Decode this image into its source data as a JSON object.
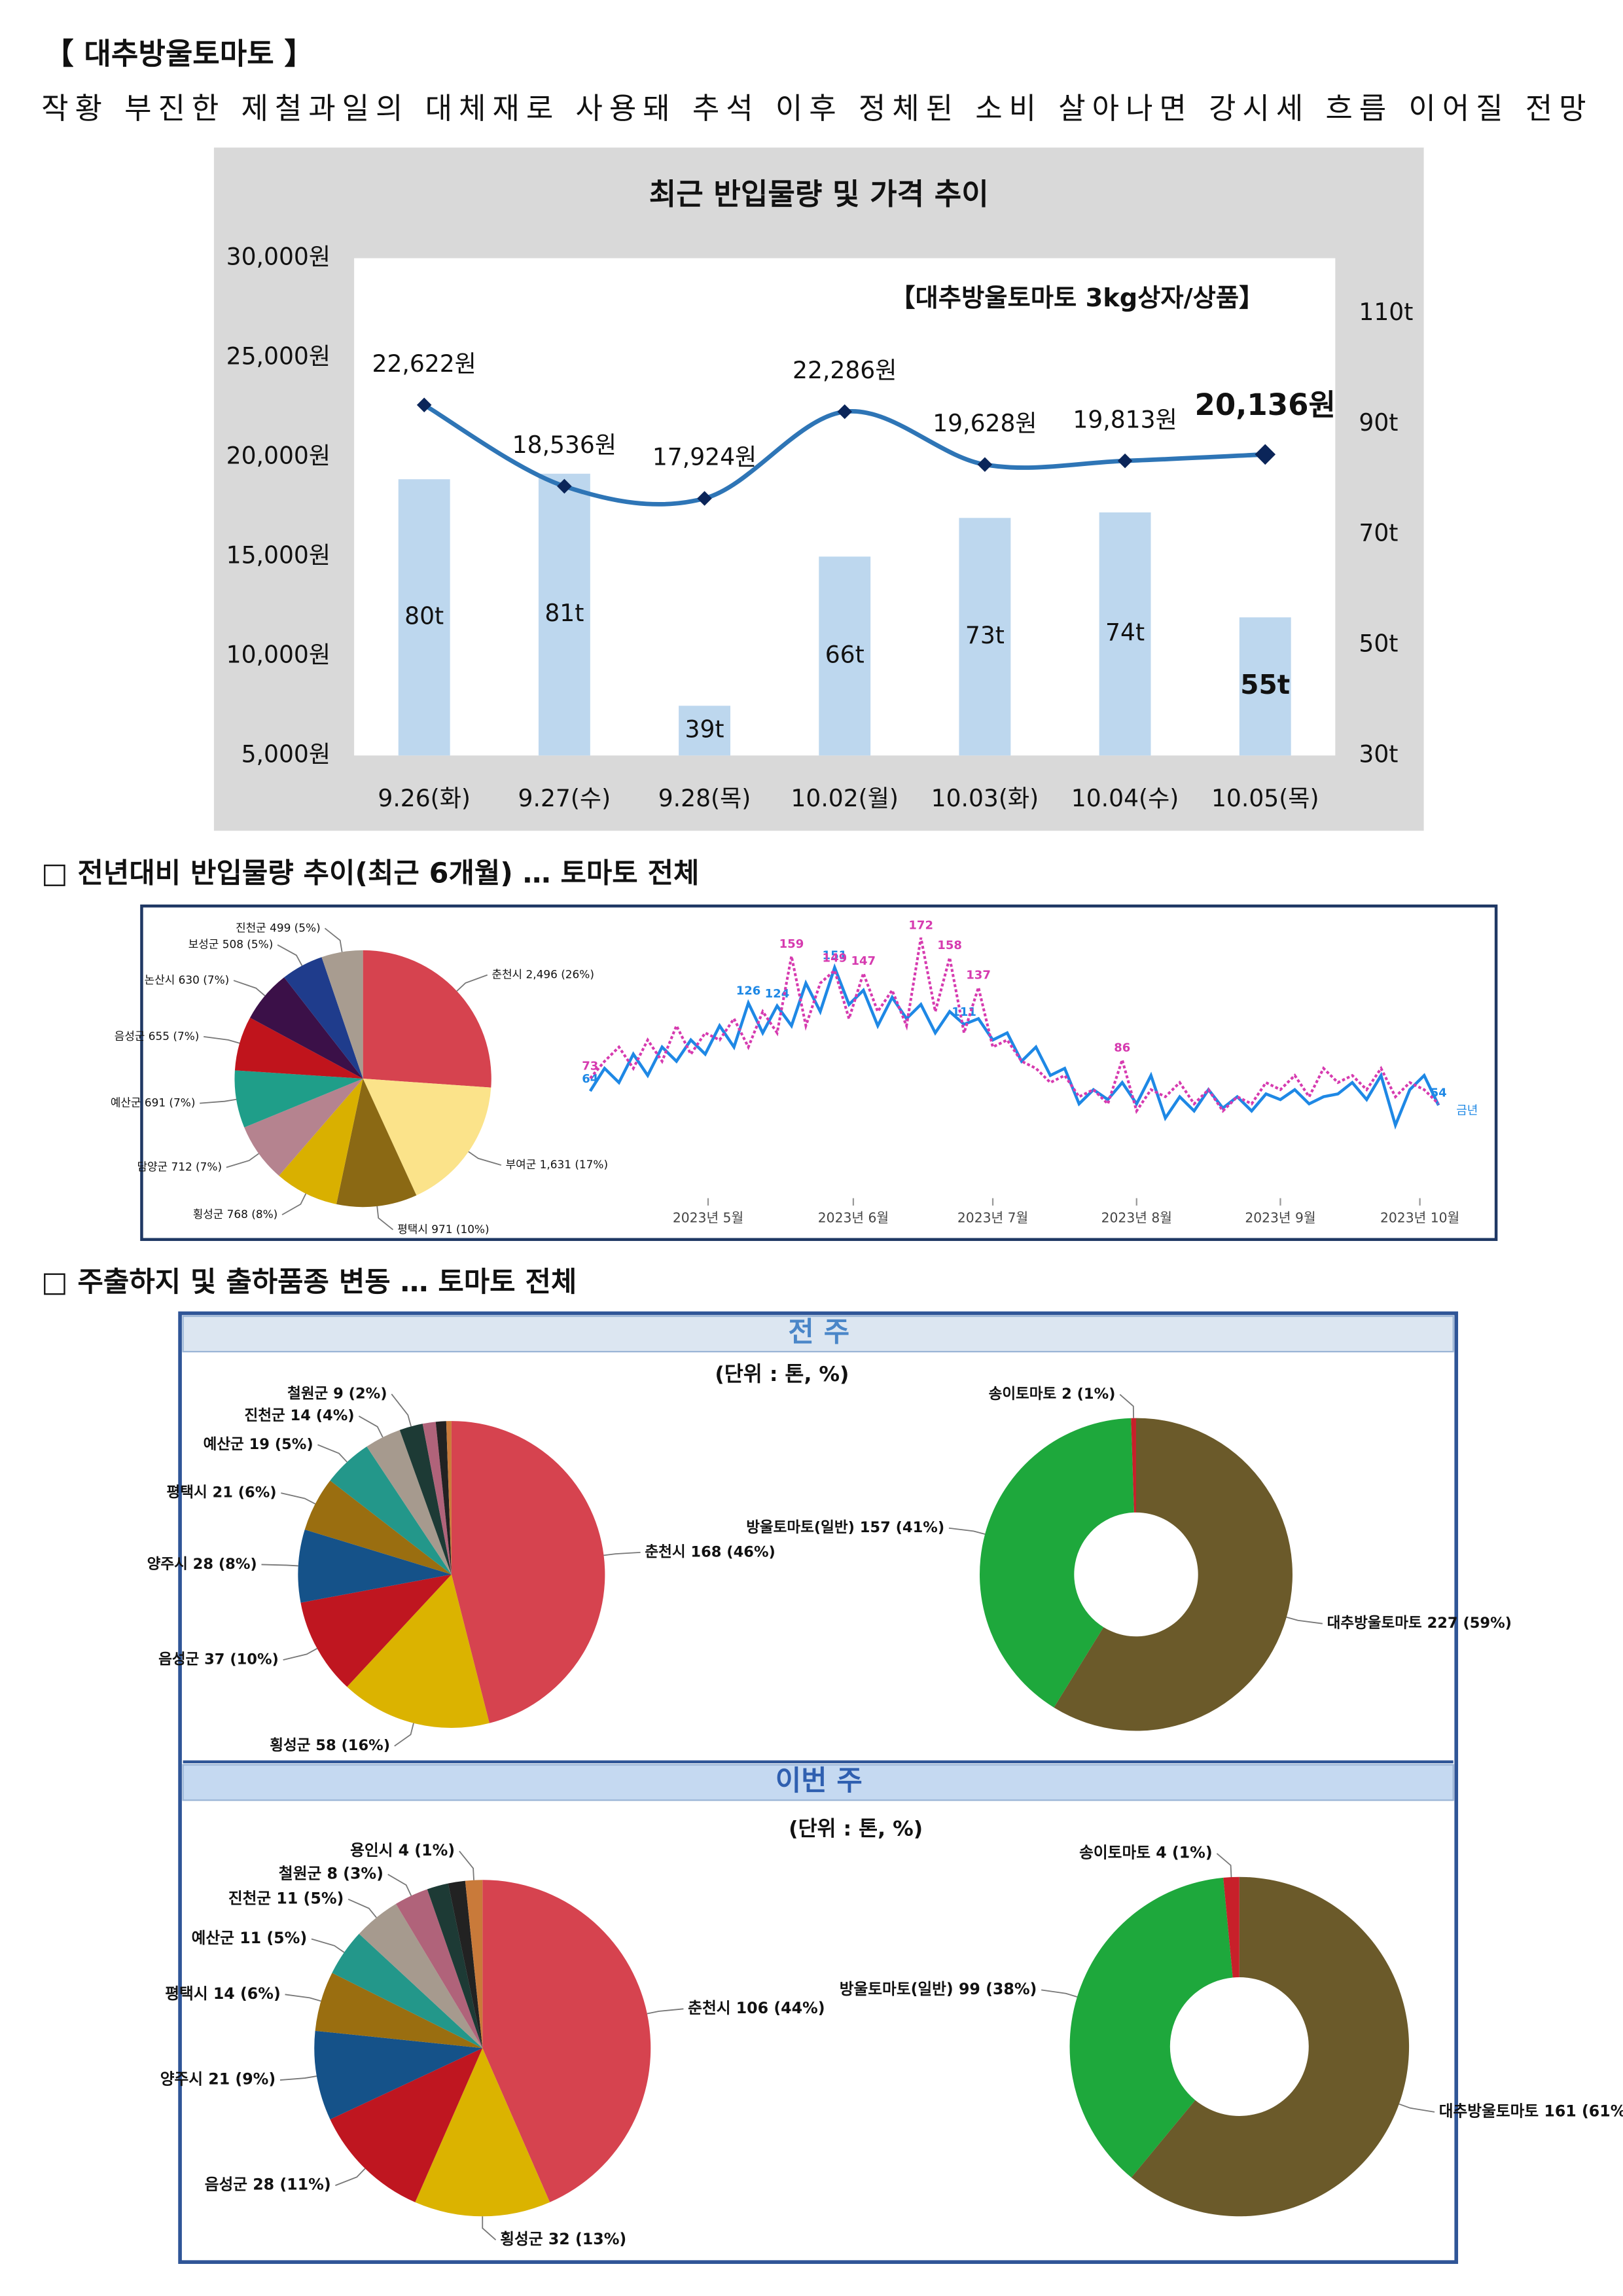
{
  "header": {
    "title": "【 대추방울토마토 】",
    "subtitle": "작황 부진한 제철과일의 대체재로 사용돼 추석 이후 정체된 소비 살아나면 강시세 흐름 이어질 전망"
  },
  "sections": [
    {
      "title": "□ 전년대비 반입물량 추이(최근 6개월) … 토마토 전체"
    },
    {
      "title": "□ 주출하지 및 출하품종 변동 … 토마토 전체",
      "panels": [
        {
          "title": "전 주",
          "unit": "(단위 : 톤, %)"
        },
        {
          "title": "이번 주",
          "unit": "(단위 : 톤, %)"
        }
      ]
    }
  ],
  "chart_data": [
    {
      "type": "bar_line",
      "title": "최근 반입물량 및 가격 추이",
      "note": "【대추방울토마토 3kg상자/상품】",
      "categories": [
        "9.26(화)",
        "9.27(수)",
        "9.28(목)",
        "10.02(월)",
        "10.03(화)",
        "10.04(수)",
        "10.05(목)"
      ],
      "ylim": [
        5000,
        30000
      ],
      "yticks": [
        {
          "value": 5000,
          "label": "5,000원"
        },
        {
          "value": 10000,
          "label": "10,000원"
        },
        {
          "value": 15000,
          "label": "15,000원"
        },
        {
          "value": 20000,
          "label": "20,000원"
        },
        {
          "value": 25000,
          "label": "25,000원"
        },
        {
          "value": 30000,
          "label": "30,000원"
        }
      ],
      "y2lim": [
        30,
        120
      ],
      "y2ticks": [
        {
          "value": 30,
          "label": "30t"
        },
        {
          "value": 50,
          "label": "50t"
        },
        {
          "value": 70,
          "label": "70t"
        },
        {
          "value": 90,
          "label": "90t"
        },
        {
          "value": 110,
          "label": "110t"
        }
      ],
      "series": [
        {
          "type": "bar",
          "axis": "y2",
          "color": "#bdd7ee",
          "values": [
            80,
            81,
            39,
            66,
            73,
            74,
            55
          ],
          "value_labels": [
            "80t",
            "81t",
            "39t",
            "66t",
            "73t",
            "74t",
            "55t"
          ]
        },
        {
          "type": "line",
          "color": "#2e75b6",
          "marker_color": "#0b2559",
          "values": [
            22622,
            18536,
            17924,
            22286,
            19628,
            19813,
            20136
          ],
          "value_labels": [
            "22,622원",
            "18,536원",
            "17,924원",
            "22,286원",
            "19,628원",
            "19,813원",
            "20,136원"
          ]
        }
      ]
    },
    {
      "type": "pie",
      "labels": [
        "춘천시 2,496 (26%)",
        "부여군 1,631 (17%)",
        "평택시 971 (10%)",
        "횡성군 768 (8%)",
        "담양군 712 (7%)",
        "예산군 691 (7%)",
        "음성군 655 (7%)",
        "논산시 630 (7%)",
        "보성군 508 (5%)",
        "진천군 499 (5%)"
      ],
      "values": [
        2496,
        1631,
        971,
        768,
        712,
        691,
        655,
        630,
        508,
        499
      ],
      "colors": [
        "#d6434f",
        "#fbe38a",
        "#8b6914",
        "#d9b000",
        "#b5838f",
        "#1f9e89",
        "#c0141c",
        "#3b1048",
        "#1f3c8c",
        "#a89c90"
      ]
    },
    {
      "type": "line",
      "xlim": [
        0,
        59
      ],
      "ylim": [
        0,
        185
      ],
      "xticks": [
        {
          "value": 8.2,
          "label": "2023년 5월"
        },
        {
          "value": 18.3,
          "label": "2023년 6월"
        },
        {
          "value": 28,
          "label": "2023년 7월"
        },
        {
          "value": 38,
          "label": "2023년 8월"
        },
        {
          "value": 48,
          "label": "2023년 9월"
        },
        {
          "value": 57.7,
          "label": "2023년 10월"
        }
      ],
      "series": [
        {
          "name": "금년",
          "color": "#1e88e5",
          "dash": false,
          "values": [
            64,
            80,
            70,
            90,
            75,
            95,
            85,
            100,
            90,
            110,
            95,
            126,
            105,
            124,
            110,
            140,
            120,
            151,
            125,
            135,
            110,
            130,
            115,
            125,
            105,
            120,
            111,
            115,
            100,
            105,
            85,
            95,
            75,
            80,
            55,
            65,
            58,
            70,
            55,
            75,
            45,
            60,
            50,
            65,
            52,
            60,
            50,
            62,
            58,
            65,
            55,
            60,
            62,
            70,
            58,
            75,
            40,
            65,
            75,
            54
          ],
          "value_labels": [
            "64",
            null,
            null,
            null,
            null,
            null,
            null,
            null,
            null,
            null,
            null,
            "126",
            null,
            "124",
            null,
            null,
            null,
            "151",
            null,
            null,
            null,
            null,
            null,
            null,
            null,
            null,
            "111",
            null,
            null,
            null,
            null,
            null,
            null,
            null,
            null,
            null,
            null,
            null,
            null,
            null,
            null,
            null,
            null,
            null,
            null,
            null,
            null,
            null,
            null,
            null,
            null,
            null,
            null,
            null,
            null,
            null,
            null,
            null,
            null,
            "54"
          ]
        },
        {
          "color": "#d63aaf",
          "dash": true,
          "values": [
            73,
            85,
            95,
            80,
            100,
            85,
            110,
            90,
            105,
            100,
            115,
            95,
            120,
            105,
            159,
            110,
            140,
            149,
            115,
            147,
            120,
            135,
            110,
            172,
            120,
            158,
            105,
            137,
            95,
            100,
            85,
            80,
            70,
            75,
            60,
            65,
            55,
            86,
            50,
            65,
            60,
            70,
            55,
            65,
            50,
            60,
            55,
            70,
            65,
            75,
            60,
            80,
            70,
            75,
            65,
            80,
            60,
            70,
            65,
            55
          ],
          "value_labels": [
            "73",
            null,
            null,
            null,
            null,
            null,
            null,
            null,
            null,
            null,
            null,
            null,
            null,
            null,
            "159",
            null,
            null,
            "149",
            null,
            "147",
            null,
            null,
            null,
            "172",
            null,
            "158",
            null,
            "137",
            null,
            null,
            null,
            null,
            null,
            null,
            null,
            null,
            null,
            "86",
            null,
            null,
            null,
            null,
            null,
            null,
            null,
            null,
            null,
            null,
            null,
            null,
            null,
            null,
            null,
            null,
            null,
            null,
            null,
            null,
            null,
            null
          ]
        }
      ]
    },
    {
      "type": "pie",
      "labels": [
        "춘천시 168 (46%)",
        "횡성군 58 (16%)",
        "음성군 37 (10%)",
        "양주시 28 (8%)",
        "평택시 21 (6%)",
        "예산군 19 (5%)",
        "진천군 14 (4%)",
        "철원군 9 (2%)",
        null,
        null,
        null
      ],
      "values": [
        168,
        58,
        37,
        28,
        21,
        19,
        14,
        9,
        5,
        4,
        2
      ],
      "colors": [
        "#d6434f",
        "#dbb300",
        "#bf1620",
        "#155289",
        "#9a6e10",
        "#23978a",
        "#a69a8e",
        "#1d3a35",
        "#b0637a",
        "#222222",
        "#c97a3a"
      ]
    },
    {
      "type": "donut",
      "labels": [
        "대추방울토마토 227 (59%)",
        "방울토마토(일반) 157 (41%)",
        "송이토마토 2 (1%)"
      ],
      "values": [
        227,
        157,
        2
      ],
      "colors": [
        "#6b5a2a",
        "#1ea83c",
        "#c8202a"
      ]
    },
    {
      "type": "pie",
      "labels": [
        "춘천시 106 (44%)",
        "횡성군 32 (13%)",
        "음성군 28 (11%)",
        "양주시 21 (9%)",
        "평택시 14 (6%)",
        "예산군 11 (5%)",
        "진천군 11 (5%)",
        "철원군 8 (3%)",
        null,
        null,
        "용인시 4 (1%)"
      ],
      "values": [
        106,
        32,
        28,
        21,
        14,
        11,
        11,
        8,
        5,
        4,
        4
      ],
      "colors": [
        "#d6434f",
        "#dbb300",
        "#bf1620",
        "#155289",
        "#9a6e10",
        "#23978a",
        "#a69a8e",
        "#b0637a",
        "#1d3a35",
        "#222222",
        "#c97a3a"
      ]
    },
    {
      "type": "donut",
      "labels": [
        "대추방울토마토 161 (61%)",
        "방울토마토(일반) 99 (38%)",
        "송이토마토 4 (1%)"
      ],
      "values": [
        161,
        99,
        4
      ],
      "colors": [
        "#6b5a2a",
        "#1ea83c",
        "#c8202a"
      ]
    }
  ]
}
